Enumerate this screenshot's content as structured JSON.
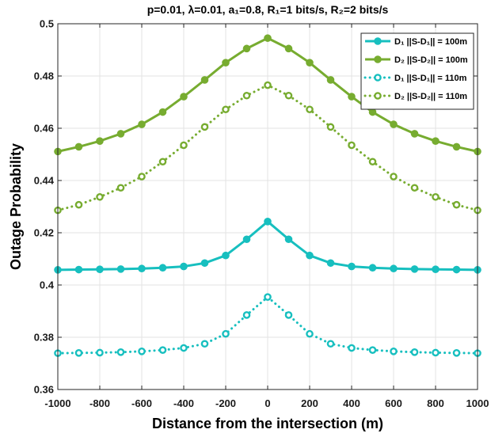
{
  "chart_data": {
    "type": "line",
    "title": "p=0.01, λ=0.01, a₁=0.8, R₁=1 bits/s, R₂=2 bits/s",
    "xlabel": "Distance from the intersection (m)",
    "ylabel": "Outage Probability",
    "xlim": [
      -1000,
      1000
    ],
    "ylim": [
      0.36,
      0.5
    ],
    "xticks": [
      -1000,
      -800,
      -600,
      -400,
      -200,
      0,
      200,
      400,
      600,
      800,
      1000
    ],
    "yticks": [
      0.36,
      0.38,
      0.4,
      0.42,
      0.44,
      0.46,
      0.48,
      0.5
    ],
    "xtick_labels": [
      "-1000",
      "-800",
      "-600",
      "-400",
      "-200",
      "0",
      "200",
      "400",
      "600",
      "800",
      "1000"
    ],
    "ytick_labels": [
      "0.36",
      "0.38",
      "0.4",
      "0.42",
      "0.44",
      "0.46",
      "0.48",
      "0.5"
    ],
    "grid": true,
    "legend_position": "top-right",
    "x": [
      -1000,
      -900,
      -800,
      -700,
      -600,
      -500,
      -400,
      -300,
      -200,
      -100,
      0,
      100,
      200,
      300,
      400,
      500,
      600,
      700,
      800,
      900,
      1000
    ],
    "series": [
      {
        "name": "D₁ ||S-D₁|| = 100m",
        "color": "#17bfbf",
        "style": "solid",
        "marker": "filled-circle",
        "values": [
          0.4058,
          0.4059,
          0.406,
          0.4061,
          0.4063,
          0.4066,
          0.4071,
          0.4084,
          0.4113,
          0.4175,
          0.4243,
          0.4175,
          0.4113,
          0.4084,
          0.4071,
          0.4066,
          0.4063,
          0.4061,
          0.406,
          0.4059,
          0.4058
        ]
      },
      {
        "name": "D₂ ||S-D₂|| = 100m",
        "color": "#77ac30",
        "style": "solid",
        "marker": "filled-circle",
        "values": [
          0.4511,
          0.4529,
          0.4551,
          0.4579,
          0.4615,
          0.4662,
          0.4721,
          0.4785,
          0.4851,
          0.4905,
          0.4945,
          0.4905,
          0.4851,
          0.4785,
          0.4721,
          0.4662,
          0.4615,
          0.4579,
          0.4551,
          0.4529,
          0.4511
        ]
      },
      {
        "name": "D₁ ||S-D₁|| = 110m",
        "color": "#17bfbf",
        "style": "dotted",
        "marker": "open-circle",
        "values": [
          0.3739,
          0.374,
          0.3741,
          0.3743,
          0.3746,
          0.3751,
          0.3759,
          0.3775,
          0.3813,
          0.3885,
          0.3954,
          0.3885,
          0.3813,
          0.3775,
          0.3759,
          0.3751,
          0.3746,
          0.3743,
          0.3741,
          0.374,
          0.3739
        ]
      },
      {
        "name": "D₂ ||S-D₂|| = 110m",
        "color": "#77ac30",
        "style": "dotted",
        "marker": "open-circle",
        "values": [
          0.4286,
          0.4307,
          0.4337,
          0.4372,
          0.4415,
          0.4472,
          0.4535,
          0.4605,
          0.4672,
          0.4725,
          0.4765,
          0.4725,
          0.4672,
          0.4605,
          0.4535,
          0.4472,
          0.4415,
          0.4372,
          0.4337,
          0.4307,
          0.4286
        ]
      }
    ]
  }
}
